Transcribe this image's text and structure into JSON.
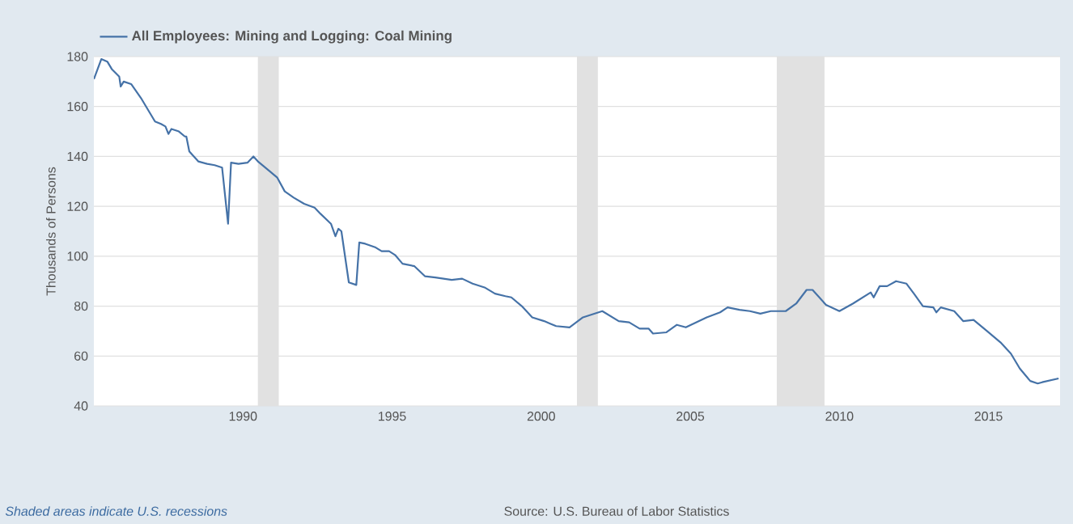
{
  "chart_data": {
    "type": "line",
    "ylabel": "Thousands of Persons",
    "legend": "top left",
    "grid": "y",
    "xlim": [
      1985,
      2017.4
    ],
    "ylim": [
      40,
      180
    ],
    "xticks": [
      1990,
      1995,
      2000,
      2005,
      2010,
      2015
    ],
    "yticks": [
      40,
      60,
      80,
      100,
      120,
      140,
      160,
      180
    ],
    "bands": [
      {
        "axis": "x",
        "from": 1990.5,
        "to": 1991.2,
        "color": "#e1e1e1"
      },
      {
        "axis": "x",
        "from": 2001.2,
        "to": 2001.9,
        "color": "#e1e1e1"
      },
      {
        "axis": "x",
        "from": 2007.9,
        "to": 2009.5,
        "color": "#e1e1e1"
      }
    ],
    "annotations": [
      "Shaded areas indicate U.S. recessions",
      "Source: U.S. Bureau of Labor Statistics"
    ],
    "series": [
      {
        "name": "All Employees: Mining and Logging: Coal Mining",
        "color": "#4572a7",
        "x": [
          1985.0,
          1985.25,
          1985.45,
          1985.6,
          1985.85,
          1985.9,
          1986.0,
          1986.25,
          1986.6,
          1987.05,
          1987.25,
          1987.4,
          1987.5,
          1987.6,
          1987.85,
          1988.05,
          1988.1,
          1988.2,
          1988.5,
          1988.8,
          1989.05,
          1989.3,
          1989.5,
          1989.6,
          1989.85,
          1990.15,
          1990.35,
          1990.5,
          1990.9,
          1991.15,
          1991.4,
          1991.7,
          1992.05,
          1992.4,
          1992.6,
          1992.95,
          1993.1,
          1993.2,
          1993.3,
          1993.55,
          1993.8,
          1993.9,
          1994.1,
          1994.45,
          1994.65,
          1994.9,
          1995.1,
          1995.35,
          1995.75,
          1996.1,
          1996.45,
          1997.0,
          1997.35,
          1997.7,
          1998.1,
          1998.45,
          1998.8,
          1999.0,
          1999.35,
          1999.7,
          2000.1,
          2000.3,
          2000.5,
          2000.95,
          2001.4,
          2002.05,
          2002.6,
          2002.95,
          2003.3,
          2003.6,
          2003.75,
          2004.2,
          2004.55,
          2004.85,
          2005.2,
          2005.55,
          2006.0,
          2006.25,
          2006.65,
          2007.0,
          2007.35,
          2007.7,
          2008.2,
          2008.55,
          2008.9,
          2009.1,
          2009.55,
          2010.0,
          2010.45,
          2011.05,
          2011.15,
          2011.35,
          2011.6,
          2011.9,
          2012.25,
          2012.5,
          2012.8,
          2013.15,
          2013.25,
          2013.4,
          2013.85,
          2014.15,
          2014.5,
          2014.95,
          2015.4,
          2015.75,
          2016.05,
          2016.4,
          2016.65,
          2016.8,
          2017.35
        ],
        "values": [
          171,
          179,
          178,
          175,
          172,
          168,
          170,
          169,
          163,
          154,
          153,
          152,
          149,
          151,
          150,
          148,
          148,
          142,
          138,
          137,
          136.5,
          135.5,
          113,
          137.5,
          137,
          137.5,
          140,
          138,
          134,
          131.5,
          126,
          123.5,
          121,
          119.5,
          117,
          113,
          108,
          111,
          110,
          89.5,
          88.5,
          105.5,
          105,
          103.5,
          102,
          102,
          100.5,
          97,
          96,
          92,
          91.5,
          90.5,
          91,
          89,
          87.5,
          85,
          84,
          83.5,
          80,
          75.5,
          74,
          73,
          72,
          71.5,
          75.5,
          78,
          74,
          73.5,
          71,
          71,
          69,
          69.5,
          72.5,
          71.5,
          73.5,
          75.5,
          77.5,
          79.5,
          78.5,
          78,
          77,
          78,
          78,
          81,
          86.5,
          86.5,
          80.5,
          78,
          81,
          85.5,
          83.5,
          88,
          88,
          90,
          89,
          85,
          80,
          79.5,
          77.5,
          79.5,
          78,
          74,
          74.5,
          70,
          65.5,
          61,
          55,
          50,
          49,
          49.5,
          51
        ]
      }
    ]
  }
}
